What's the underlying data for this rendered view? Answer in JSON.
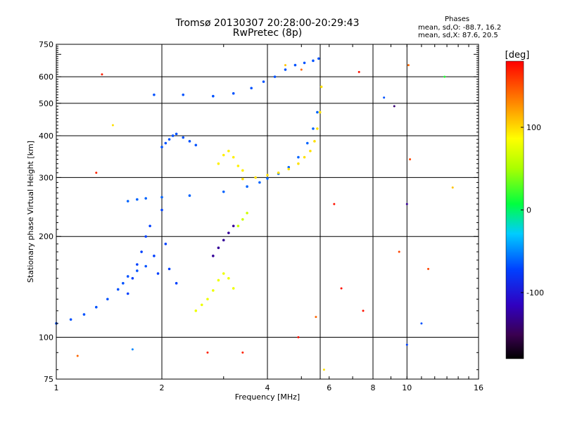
{
  "chart_data": {
    "type": "scatter",
    "title": "Tromsø 20130307 20:28:00-20:29:43",
    "subtitle": "RwPretec (8p)",
    "xlabel": "Frequency [MHz]",
    "ylabel": "Stationary phase Virtual Height [km]",
    "x_scale": "log",
    "y_scale": "log",
    "xlim": [
      1,
      16
    ],
    "ylim": [
      75,
      750
    ],
    "x_ticks": [
      1,
      2,
      4,
      8,
      16
    ],
    "x_tick_labels": [
      "1",
      "2",
      "4",
      "8",
      "16"
    ],
    "x_minor_tick_labels": [
      {
        "value": 6,
        "label": "6"
      },
      {
        "value": 10,
        "label": "10"
      }
    ],
    "y_ticks": [
      75,
      100,
      200,
      300,
      400,
      500,
      600,
      750
    ],
    "y_tick_labels": [
      "75",
      "100",
      "200",
      "300",
      "400",
      "500",
      "600",
      "750"
    ],
    "x_gridlines": [
      2,
      4,
      5.657,
      8,
      10
    ],
    "y_gridlines": [
      100,
      200,
      300,
      400,
      500,
      600
    ],
    "grid": true,
    "stats": {
      "header": "Phases",
      "o_mode": "mean, sd,O: -88.7, 16.2",
      "x_mode": "mean, sd,X:  87.6, 20.5"
    },
    "colorbar": {
      "label": "[deg]",
      "range": [
        -180,
        180
      ],
      "ticks": [
        100,
        0,
        -100
      ],
      "tick_labels": [
        "100",
        "0",
        "-100"
      ]
    },
    "series": [
      {
        "x": [
          1.0,
          1.1,
          1.2,
          1.3,
          1.4,
          1.5,
          1.55,
          1.6,
          1.7,
          1.8
        ],
        "phase": -95,
        "y": [
          110,
          113,
          117,
          123,
          130,
          139,
          145,
          152,
          158,
          163
        ]
      },
      {
        "x": [
          1.6,
          1.7,
          1.8,
          2.0,
          2.4,
          3.0,
          3.5,
          3.8,
          4.0,
          4.3,
          4.6,
          4.9,
          5.2,
          5.4,
          5.55
        ],
        "phase": -90,
        "y": [
          255,
          258,
          260,
          262,
          265,
          272,
          282,
          290,
          298,
          308,
          322,
          345,
          380,
          420,
          470
        ]
      },
      {
        "x": [
          3.4,
          3.7,
          4.0,
          4.3,
          4.6,
          4.9,
          5.1,
          5.3,
          5.45,
          5.55,
          5.65,
          5.7
        ],
        "phase": 110,
        "y": [
          297,
          300,
          305,
          310,
          318,
          330,
          345,
          360,
          385,
          420,
          470,
          560
        ]
      },
      {
        "x": [
          1.9,
          2.3,
          2.8,
          3.2,
          3.6,
          3.9,
          4.2,
          4.5,
          4.8,
          5.1,
          5.4,
          5.6
        ],
        "phase": -95,
        "y": [
          530,
          530,
          525,
          535,
          555,
          580,
          600,
          630,
          650,
          660,
          670,
          680
        ]
      },
      {
        "x": [
          1.6,
          1.65,
          1.7,
          1.75,
          1.8,
          1.85,
          1.9,
          1.95,
          2.0,
          2.05,
          2.1,
          2.2
        ],
        "phase": -100,
        "y": [
          135,
          150,
          165,
          180,
          200,
          215,
          175,
          155,
          240,
          190,
          160,
          145
        ]
      },
      {
        "x": [
          2.0,
          2.05,
          2.1,
          2.15,
          2.2,
          2.3,
          2.4,
          2.5
        ],
        "phase": -95,
        "y": [
          370,
          380,
          390,
          400,
          405,
          395,
          385,
          375
        ]
      },
      {
        "x": [
          2.5,
          2.6,
          2.7,
          2.8,
          2.9,
          3.0,
          3.1,
          3.2
        ],
        "phase": 90,
        "y": [
          120,
          125,
          130,
          138,
          148,
          155,
          150,
          140
        ]
      },
      {
        "x": [
          2.9,
          3.0,
          3.1,
          3.2,
          3.3,
          3.4
        ],
        "phase": 105,
        "y": [
          330,
          350,
          360,
          345,
          325,
          315
        ]
      },
      {
        "x": [
          2.8,
          2.9,
          3.0,
          3.1,
          3.2
        ],
        "phase": -140,
        "y": [
          175,
          185,
          195,
          205,
          215
        ]
      },
      {
        "x": [
          3.3,
          3.4,
          3.5
        ],
        "phase": 70,
        "y": [
          215,
          225,
          235
        ]
      }
    ],
    "scattered_points": [
      {
        "x": 1.35,
        "y": 610,
        "phase": 170
      },
      {
        "x": 1.45,
        "y": 430,
        "phase": 110
      },
      {
        "x": 1.3,
        "y": 310,
        "phase": 170
      },
      {
        "x": 1.15,
        "y": 88,
        "phase": 150
      },
      {
        "x": 1.65,
        "y": 92,
        "phase": -80
      },
      {
        "x": 2.7,
        "y": 90,
        "phase": 170
      },
      {
        "x": 3.4,
        "y": 90,
        "phase": 170
      },
      {
        "x": 4.5,
        "y": 650,
        "phase": 120
      },
      {
        "x": 5.0,
        "y": 630,
        "phase": 150
      },
      {
        "x": 7.3,
        "y": 620,
        "phase": 175
      },
      {
        "x": 8.6,
        "y": 520,
        "phase": -95
      },
      {
        "x": 9.2,
        "y": 490,
        "phase": -150
      },
      {
        "x": 10.1,
        "y": 650,
        "phase": 150
      },
      {
        "x": 10.2,
        "y": 340,
        "phase": 160
      },
      {
        "x": 10.0,
        "y": 250,
        "phase": -140
      },
      {
        "x": 12.8,
        "y": 600,
        "phase": 10
      },
      {
        "x": 13.5,
        "y": 280,
        "phase": 120
      },
      {
        "x": 11.0,
        "y": 110,
        "phase": -95
      },
      {
        "x": 10.0,
        "y": 95,
        "phase": -100
      },
      {
        "x": 6.2,
        "y": 250,
        "phase": 175
      },
      {
        "x": 6.5,
        "y": 140,
        "phase": 175
      },
      {
        "x": 7.5,
        "y": 120,
        "phase": 175
      },
      {
        "x": 9.5,
        "y": 180,
        "phase": 160
      },
      {
        "x": 11.5,
        "y": 160,
        "phase": 160
      },
      {
        "x": 4.9,
        "y": 100,
        "phase": 175
      },
      {
        "x": 5.5,
        "y": 115,
        "phase": 150
      },
      {
        "x": 5.8,
        "y": 80,
        "phase": 110
      }
    ]
  }
}
